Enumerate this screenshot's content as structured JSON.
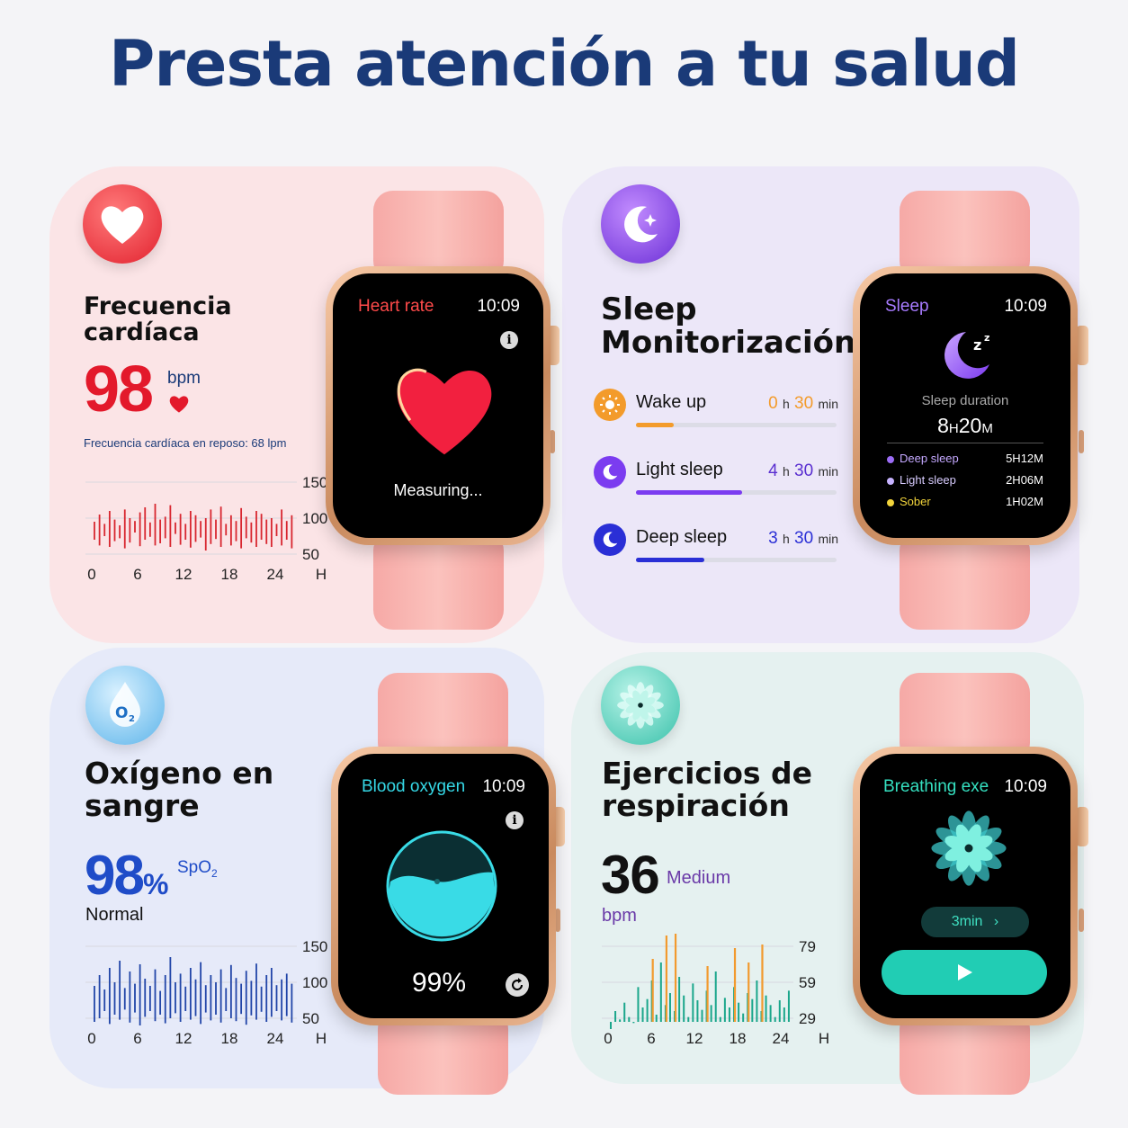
{
  "title": "Presta atención a tu salud",
  "heart": {
    "title_line1": "Frecuencia",
    "title_line2": "cardíaca",
    "value": "98",
    "unit": "bpm",
    "resting": "Frecuencia cardíaca en reposo: 68 lpm",
    "chart_color": "#d8262f",
    "watch": {
      "label": "Heart rate",
      "time": "10:09",
      "status": "Measuring..."
    }
  },
  "sleep": {
    "title_line1": "Sleep",
    "title_line2": "Monitorización",
    "rows": [
      {
        "label": "Wake up",
        "h": "0",
        "h_unit": "h",
        "m": "30",
        "m_unit": "min",
        "color": "#f39b2b",
        "fill_fraction": 0.19
      },
      {
        "label": "Light sleep",
        "h": "4",
        "h_unit": "h",
        "m": "30",
        "m_unit": "min",
        "color": "#7b3cf0",
        "fill_fraction": 0.53
      },
      {
        "label": "Deep sleep",
        "h": "3",
        "h_unit": "h",
        "m": "30",
        "m_unit": "min",
        "color": "#2a2fd6",
        "fill_fraction": 0.34
      }
    ],
    "watch": {
      "label": "Sleep",
      "time": "10:09",
      "duration_label": "Sleep duration",
      "duration_h": "8",
      "duration_h_unit": "H",
      "duration_m": "20",
      "duration_m_unit": "M",
      "legend": [
        {
          "label": "Deep sleep",
          "value": "5H12M",
          "color": "#9b6cf5"
        },
        {
          "label": "Light sleep",
          "value": "2H06M",
          "color": "#c7b3ff"
        },
        {
          "label": "Sober",
          "value": "1H02M",
          "color": "#f2d43b"
        }
      ]
    }
  },
  "oxygen": {
    "title_line1": "Oxígeno en",
    "title_line2": "sangre",
    "value": "98",
    "percent": "%",
    "spo2": "SpO",
    "spo2_sub": "2",
    "status": "Normal",
    "chart_color": "#2145a8",
    "watch": {
      "label": "Blood oxygen",
      "time": "10:09",
      "value": "99%",
      "level": 0.99
    }
  },
  "breathing": {
    "title_line1": "Ejercicios de",
    "title_line2": "respiración",
    "value": "36",
    "level": "Medium",
    "unit": "bpm",
    "watch": {
      "label": "Breathing exe",
      "time": "10:09",
      "duration": "3min",
      "chevron": "›"
    }
  },
  "chart_data": [
    {
      "type": "bar",
      "name": "heart",
      "x_ticks": [
        "0",
        "6",
        "12",
        "18",
        "24",
        "H"
      ],
      "y_ticks": [
        "150",
        "100",
        "50"
      ],
      "ylim": [
        0,
        150
      ],
      "grid": true,
      "series": [
        {
          "color": "#d8262f",
          "ranges": [
            [
              70,
              95
            ],
            [
              62,
              105
            ],
            [
              75,
              92
            ],
            [
              60,
              110
            ],
            [
              68,
              98
            ],
            [
              72,
              90
            ],
            [
              58,
              112
            ],
            [
              66,
              100
            ],
            [
              80,
              96
            ],
            [
              61,
              108
            ],
            [
              70,
              115
            ],
            [
              74,
              94
            ],
            [
              62,
              120
            ],
            [
              65,
              98
            ],
            [
              72,
              102
            ],
            [
              60,
              118
            ],
            [
              78,
              94
            ],
            [
              63,
              106
            ],
            [
              70,
              92
            ],
            [
              59,
              110
            ],
            [
              67,
              104
            ],
            [
              73,
              96
            ],
            [
              55,
              100
            ],
            [
              64,
              112
            ],
            [
              71,
              98
            ],
            [
              60,
              116
            ],
            [
              76,
              92
            ],
            [
              62,
              104
            ],
            [
              68,
              96
            ],
            [
              58,
              114
            ],
            [
              72,
              102
            ],
            [
              66,
              94
            ],
            [
              60,
              110
            ],
            [
              70,
              106
            ],
            [
              64,
              98
            ],
            [
              60,
              100
            ],
            [
              75,
              92
            ],
            [
              62,
              112
            ],
            [
              70,
              96
            ],
            [
              58,
              104
            ]
          ]
        }
      ]
    },
    {
      "type": "bar",
      "name": "oxygen",
      "x_ticks": [
        "0",
        "6",
        "12",
        "18",
        "24",
        "H"
      ],
      "y_ticks": [
        "150",
        "100",
        "50"
      ],
      "ylim": [
        0,
        150
      ],
      "grid": true,
      "series": [
        {
          "color": "#2145a8",
          "ranges": [
            [
              45,
              95
            ],
            [
              50,
              110
            ],
            [
              60,
              90
            ],
            [
              42,
              120
            ],
            [
              55,
              100
            ],
            [
              48,
              130
            ],
            [
              62,
              92
            ],
            [
              44,
              115
            ],
            [
              58,
              98
            ],
            [
              40,
              125
            ],
            [
              52,
              105
            ],
            [
              60,
              95
            ],
            [
              46,
              118
            ],
            [
              55,
              88
            ],
            [
              43,
              110
            ],
            [
              50,
              135
            ],
            [
              57,
              100
            ],
            [
              45,
              112
            ],
            [
              60,
              94
            ],
            [
              48,
              120
            ],
            [
              53,
              104
            ],
            [
              42,
              128
            ],
            [
              58,
              96
            ],
            [
              47,
              110
            ],
            [
              55,
              100
            ],
            [
              44,
              118
            ],
            [
              60,
              92
            ],
            [
              50,
              124
            ],
            [
              46,
              106
            ],
            [
              56,
              98
            ],
            [
              41,
              116
            ],
            [
              54,
              102
            ],
            [
              48,
              126
            ],
            [
              59,
              94
            ],
            [
              45,
              110
            ],
            [
              52,
              120
            ],
            [
              60,
              96
            ],
            [
              47,
              104
            ],
            [
              53,
              112
            ],
            [
              44,
              98
            ]
          ]
        }
      ]
    },
    {
      "type": "bar",
      "name": "breathing",
      "x_ticks": [
        "0",
        "6",
        "12",
        "18",
        "24",
        "H"
      ],
      "y_ticks": [
        "79",
        "59",
        "29"
      ],
      "ylim": [
        0,
        90
      ],
      "grid": true,
      "series": [
        {
          "name": "",
          "color": "#1aa68b",
          "values": [
            20,
            35,
            28,
            42,
            30,
            25,
            55,
            38,
            45,
            60,
            32,
            70,
            40,
            50,
            35,
            62,
            48,
            30,
            58,
            44,
            36,
            52,
            40,
            65,
            30,
            46,
            38,
            55,
            42,
            33,
            50,
            45,
            60,
            35,
            48,
            40,
            30,
            44,
            38,
            52
          ]
        },
        {
          "name": "",
          "color": "#f29a2e",
          "index": [
            9,
            12,
            14,
            21,
            27,
            30,
            33
          ],
          "values": [
            72,
            85,
            86,
            68,
            78,
            70,
            80
          ]
        }
      ]
    }
  ]
}
